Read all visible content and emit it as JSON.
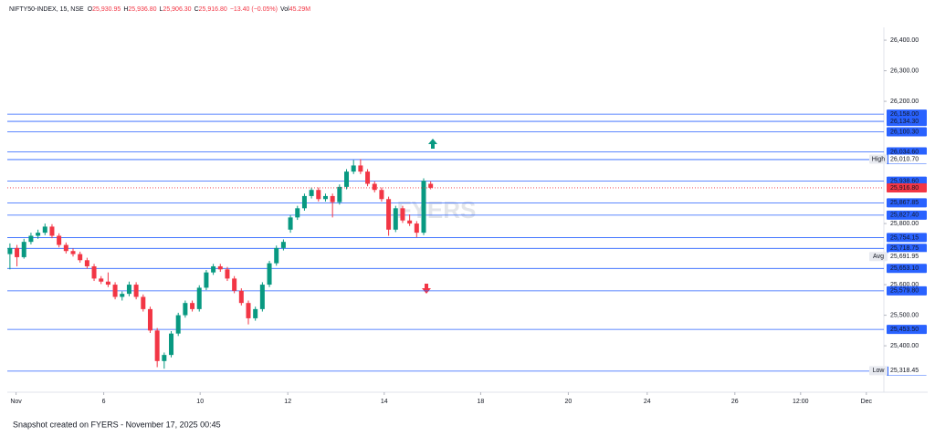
{
  "chart_data": {
    "type": "candlestick",
    "title": "NIFTY50-INDEX, 15, NSE",
    "ohlc_legend": [
      {
        "label": "O",
        "value": "25,930.95"
      },
      {
        "label": "H",
        "value": "25,936.80"
      },
      {
        "label": "L",
        "value": "25,906.30"
      },
      {
        "label": "C",
        "value": "25,916.80"
      },
      {
        "label": "",
        "value": "−13.40 (−0.05%)"
      },
      {
        "label": "Vol",
        "value": "45.29M"
      }
    ],
    "watermark": "FYERS",
    "footer": "Snapshot created on FYERS - November 17, 2025 00:45",
    "up_color": "#089981",
    "down_color": "#f23645",
    "level_color": "#2962ff",
    "xlim": [
      0,
      100
    ],
    "ylim": [
      25248,
      26442
    ],
    "xticks": [
      {
        "value": 1,
        "label": "Nov"
      },
      {
        "value": 11,
        "label": "6"
      },
      {
        "value": 22,
        "label": "10"
      },
      {
        "value": 32,
        "label": "12"
      },
      {
        "value": 43,
        "label": "14"
      },
      {
        "value": 54,
        "label": "18"
      },
      {
        "value": 64,
        "label": "20"
      },
      {
        "value": 73,
        "label": "24"
      },
      {
        "value": 83,
        "label": "26"
      },
      {
        "value": 90.5,
        "label": "12:00"
      },
      {
        "value": 98,
        "label": "Dec"
      }
    ],
    "yticks": [
      {
        "value": 26400,
        "label": "26,400.00"
      },
      {
        "value": 26300,
        "label": "26,300.00"
      },
      {
        "value": 26200,
        "label": "26,200.00"
      },
      {
        "value": 25800,
        "label": "25,800.00"
      },
      {
        "value": 25600,
        "label": "25,600.00"
      },
      {
        "value": 25500,
        "label": "25,500.00"
      },
      {
        "value": 25400,
        "label": "25,400.00"
      }
    ],
    "levels": [
      {
        "value": 26158.0,
        "label": "26,158.00"
      },
      {
        "value": 26134.3,
        "label": "26,134.30"
      },
      {
        "value": 26100.3,
        "label": "26,100.30"
      },
      {
        "value": 26034.6,
        "label": "26,034.60"
      },
      {
        "value": 26009.3,
        "label": "26,009.30"
      },
      {
        "value": 25938.6,
        "label": "25,938.60"
      },
      {
        "value": 25867.85,
        "label": "25,867.85"
      },
      {
        "value": 25827.4,
        "label": "25,827.40"
      },
      {
        "value": 25754.15,
        "label": "25,754.15"
      },
      {
        "value": 25718.75,
        "label": "25,718.75"
      },
      {
        "value": 25653.1,
        "label": "25,653.10"
      },
      {
        "value": 25579.8,
        "label": "25,579.80"
      },
      {
        "value": 25453.5,
        "label": "25,453.50"
      },
      {
        "value": 25317.05,
        "label": "25,317.05"
      }
    ],
    "markers": [
      {
        "name": "High",
        "value": 26010.7,
        "label": "26,010.70"
      },
      {
        "name": "Avg",
        "value": 25691.95,
        "label": "25,691.95"
      },
      {
        "name": "Low",
        "value": 25318.45,
        "label": "25,318.45"
      }
    ],
    "last": {
      "value": 25916.8,
      "label": "25,916.80"
    },
    "x": [
      0.3,
      1.1,
      1.9,
      2.7,
      3.5,
      4.3,
      5.1,
      5.9,
      6.7,
      7.5,
      8.3,
      9.1,
      9.9,
      10.7,
      11.5,
      12.3,
      13.1,
      13.9,
      14.7,
      15.5,
      16.3,
      17.1,
      17.9,
      18.7,
      19.5,
      20.3,
      21.1,
      21.9,
      22.7,
      23.5,
      24.3,
      25.1,
      25.9,
      26.7,
      27.5,
      28.3,
      29.1,
      29.9,
      30.7,
      31.5,
      32.3,
      33.1,
      33.9,
      34.7,
      35.5,
      36.3,
      37.1,
      37.9,
      38.7,
      39.5,
      40.3,
      41.1,
      41.9,
      42.7,
      43.5,
      44.3,
      45.1,
      45.9,
      46.7,
      47.5,
      48.3
    ],
    "open": [
      25700,
      25720,
      25690,
      25740,
      25760,
      25770,
      25790,
      25760,
      25730,
      25710,
      25700,
      25680,
      25660,
      25620,
      25610,
      25600,
      25560,
      25570,
      25600,
      25560,
      25520,
      25450,
      25350,
      25370,
      25440,
      25500,
      25540,
      25520,
      25590,
      25640,
      25660,
      25650,
      25620,
      25580,
      25540,
      25490,
      25520,
      25600,
      25670,
      25720,
      25780,
      25820,
      25850,
      25890,
      25910,
      25880,
      25890,
      25870,
      25920,
      25970,
      25990,
      25970,
      25930,
      25910,
      25880,
      25780,
      25850,
      25810,
      25800,
      25770,
      25930
    ],
    "high": [
      25735,
      25730,
      25750,
      25770,
      25780,
      25800,
      25798,
      25768,
      25738,
      25718,
      25708,
      25688,
      25668,
      25628,
      25640,
      25608,
      25578,
      25610,
      25608,
      25568,
      25528,
      25458,
      25378,
      25448,
      25508,
      25548,
      25548,
      25598,
      25648,
      25668,
      25668,
      25658,
      25628,
      25588,
      25548,
      25528,
      25608,
      25678,
      25728,
      25748,
      25828,
      25858,
      25898,
      25918,
      25918,
      25898,
      25898,
      25928,
      25978,
      26008,
      26011,
      25978,
      25938,
      25918,
      25888,
      25858,
      25858,
      25830,
      25808,
      25948,
      25938
    ],
    "low": [
      25650,
      25660,
      25685,
      25732,
      25750,
      25762,
      25752,
      25722,
      25702,
      25692,
      25672,
      25652,
      25612,
      25602,
      25592,
      25552,
      25548,
      25562,
      25552,
      25512,
      25442,
      25330,
      25325,
      25362,
      25432,
      25492,
      25512,
      25512,
      25582,
      25632,
      25642,
      25612,
      25572,
      25532,
      25470,
      25482,
      25512,
      25592,
      25662,
      25712,
      25770,
      25812,
      25842,
      25882,
      25872,
      25872,
      25820,
      25862,
      25912,
      25962,
      25962,
      25922,
      25902,
      25872,
      25760,
      25772,
      25802,
      25792,
      25755,
      25762,
      25912
    ],
    "close": [
      25720,
      25690,
      25740,
      25760,
      25770,
      25790,
      25760,
      25730,
      25710,
      25700,
      25680,
      25660,
      25620,
      25610,
      25600,
      25560,
      25570,
      25600,
      25560,
      25520,
      25450,
      25350,
      25370,
      25440,
      25500,
      25540,
      25520,
      25590,
      25640,
      25660,
      25650,
      25620,
      25580,
      25540,
      25490,
      25520,
      25600,
      25670,
      25720,
      25740,
      25820,
      25850,
      25890,
      25910,
      25880,
      25890,
      25870,
      25920,
      25970,
      25990,
      25970,
      25930,
      25910,
      25880,
      25780,
      25850,
      25810,
      25800,
      25770,
      25940,
      25917
    ]
  }
}
